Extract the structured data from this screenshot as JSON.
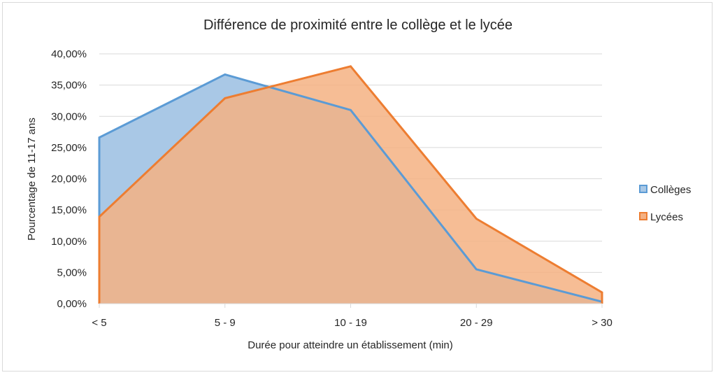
{
  "chart_data": {
    "type": "area",
    "title": "Différence de proximité entre le collège et le lycée",
    "xlabel": "Durée pour atteindre un établissement (min)",
    "ylabel": "Pourcentage de 11-17 ans",
    "categories": [
      "< 5",
      "5 - 9",
      "10 - 19",
      "20 - 29",
      "> 30"
    ],
    "ylim": [
      0,
      40
    ],
    "yticks": [
      0,
      5,
      10,
      15,
      20,
      25,
      30,
      35,
      40
    ],
    "ytick_labels": [
      "0,00%",
      "5,00%",
      "10,00%",
      "15,00%",
      "20,00%",
      "25,00%",
      "30,00%",
      "35,00%",
      "40,00%"
    ],
    "grid": true,
    "legend_position": "right",
    "series": [
      {
        "name": "Collèges",
        "values": [
          26.6,
          36.7,
          31.0,
          5.5,
          0.3
        ],
        "line_color": "#5b9bd5",
        "fill_color": "#a9c8e6"
      },
      {
        "name": "Lycées",
        "values": [
          13.9,
          32.9,
          38.0,
          13.6,
          1.8
        ],
        "line_color": "#ed7d31",
        "fill_color": "#f4b183"
      }
    ]
  }
}
